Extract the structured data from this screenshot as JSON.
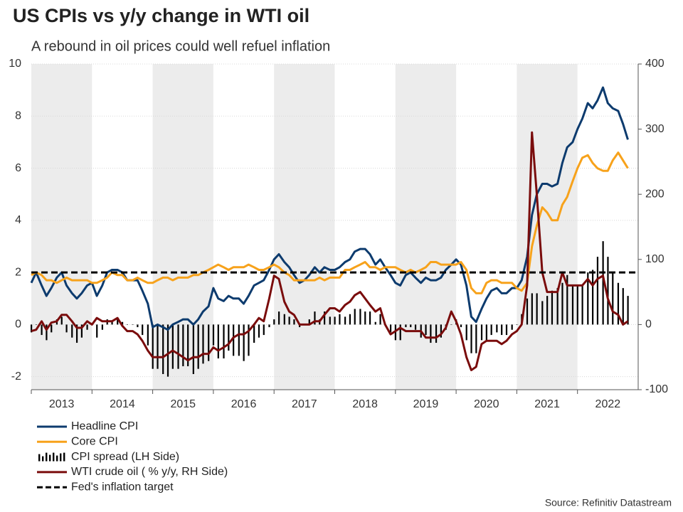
{
  "chart_data": {
    "type": "combo",
    "title": "US CPIs vs y/y change in WTI oil",
    "subtitle": "A rebound in oil prices could well refuel inflation",
    "source": "Source: Refinitiv Datastream",
    "xlim": [
      2013,
      2023
    ],
    "xticks": [
      {
        "value": 2013.5,
        "label": "2013"
      },
      {
        "value": 2014.5,
        "label": "2014"
      },
      {
        "value": 2015.5,
        "label": "2015"
      },
      {
        "value": 2016.5,
        "label": "2016"
      },
      {
        "value": 2017.5,
        "label": "2017"
      },
      {
        "value": 2018.5,
        "label": "2018"
      },
      {
        "value": 2019.5,
        "label": "2019"
      },
      {
        "value": 2020.5,
        "label": "2020"
      },
      {
        "value": 2021.5,
        "label": "2021"
      },
      {
        "value": 2022.5,
        "label": "2022"
      }
    ],
    "ylim": [
      -2.5,
      10
    ],
    "yticks": [
      -2,
      0,
      2,
      4,
      6,
      8,
      10
    ],
    "y2lim": [
      -100,
      400
    ],
    "y2ticks": [
      -100,
      0,
      100,
      200,
      300,
      400
    ],
    "x": [
      2013,
      2013.08,
      2013.17,
      2013.25,
      2013.33,
      2013.42,
      2013.5,
      2013.58,
      2013.67,
      2013.75,
      2013.83,
      2013.92,
      2014,
      2014.08,
      2014.17,
      2014.25,
      2014.33,
      2014.42,
      2014.5,
      2014.58,
      2014.67,
      2014.75,
      2014.83,
      2014.92,
      2015,
      2015.08,
      2015.17,
      2015.25,
      2015.33,
      2015.42,
      2015.5,
      2015.58,
      2015.67,
      2015.75,
      2015.83,
      2015.92,
      2016,
      2016.08,
      2016.17,
      2016.25,
      2016.33,
      2016.42,
      2016.5,
      2016.58,
      2016.67,
      2016.75,
      2016.83,
      2016.92,
      2017,
      2017.08,
      2017.17,
      2017.25,
      2017.33,
      2017.42,
      2017.5,
      2017.58,
      2017.67,
      2017.75,
      2017.83,
      2017.92,
      2018,
      2018.08,
      2018.17,
      2018.25,
      2018.33,
      2018.42,
      2018.5,
      2018.58,
      2018.67,
      2018.75,
      2018.83,
      2018.92,
      2019,
      2019.08,
      2019.17,
      2019.25,
      2019.33,
      2019.42,
      2019.5,
      2019.58,
      2019.67,
      2019.75,
      2019.83,
      2019.92,
      2020,
      2020.08,
      2020.17,
      2020.25,
      2020.33,
      2020.42,
      2020.5,
      2020.58,
      2020.67,
      2020.75,
      2020.83,
      2020.92,
      2021,
      2021.08,
      2021.17,
      2021.25,
      2021.33,
      2021.42,
      2021.5,
      2021.58,
      2021.67,
      2021.75,
      2021.83,
      2021.92,
      2022,
      2022.08,
      2022.17,
      2022.25,
      2022.33,
      2022.42,
      2022.5,
      2022.58,
      2022.67,
      2022.75,
      2022.83
    ],
    "series": [
      {
        "name": "Headline CPI",
        "kind": "line",
        "color": "#0d3b6e",
        "values": [
          1.6,
          2.0,
          1.5,
          1.1,
          1.4,
          1.8,
          2.0,
          1.5,
          1.2,
          1.0,
          1.2,
          1.5,
          1.6,
          1.1,
          1.5,
          2.0,
          2.1,
          2.1,
          2.0,
          1.7,
          1.7,
          1.7,
          1.3,
          0.8,
          -0.1,
          0.0,
          -0.1,
          -0.2,
          0.0,
          0.1,
          0.2,
          0.2,
          0.0,
          0.2,
          0.5,
          0.7,
          1.4,
          1.0,
          0.9,
          1.1,
          1.0,
          1.0,
          0.8,
          1.1,
          1.5,
          1.6,
          1.7,
          2.1,
          2.5,
          2.7,
          2.4,
          2.2,
          1.9,
          1.6,
          1.7,
          1.9,
          2.2,
          2.0,
          2.2,
          2.1,
          2.1,
          2.2,
          2.4,
          2.5,
          2.8,
          2.9,
          2.9,
          2.7,
          2.3,
          2.5,
          2.2,
          1.9,
          1.6,
          1.5,
          1.9,
          2.0,
          1.8,
          1.6,
          1.8,
          1.7,
          1.7,
          1.8,
          2.1,
          2.3,
          2.5,
          2.3,
          1.5,
          0.3,
          0.1,
          0.6,
          1.0,
          1.3,
          1.4,
          1.2,
          1.2,
          1.4,
          1.4,
          1.7,
          2.6,
          4.2,
          5.0,
          5.4,
          5.4,
          5.3,
          5.4,
          6.2,
          6.8,
          7.0,
          7.5,
          7.9,
          8.5,
          8.3,
          8.6,
          9.1,
          8.5,
          8.3,
          8.2,
          7.7,
          7.1
        ]
      },
      {
        "name": "Core CPI",
        "kind": "line",
        "color": "#f7a21b",
        "values": [
          1.9,
          2.0,
          1.9,
          1.7,
          1.7,
          1.6,
          1.7,
          1.8,
          1.7,
          1.7,
          1.7,
          1.7,
          1.6,
          1.6,
          1.7,
          1.8,
          2.0,
          1.9,
          1.9,
          1.7,
          1.7,
          1.8,
          1.7,
          1.6,
          1.6,
          1.7,
          1.8,
          1.8,
          1.7,
          1.8,
          1.8,
          1.8,
          1.9,
          1.9,
          2.0,
          2.1,
          2.2,
          2.3,
          2.2,
          2.1,
          2.2,
          2.2,
          2.2,
          2.3,
          2.2,
          2.1,
          2.1,
          2.2,
          2.3,
          2.2,
          2.0,
          1.9,
          1.7,
          1.7,
          1.7,
          1.7,
          1.7,
          1.8,
          1.7,
          1.8,
          1.8,
          1.8,
          2.1,
          2.1,
          2.2,
          2.3,
          2.4,
          2.2,
          2.2,
          2.1,
          2.2,
          2.2,
          2.2,
          2.1,
          2.0,
          2.1,
          2.0,
          2.1,
          2.2,
          2.4,
          2.4,
          2.3,
          2.3,
          2.3,
          2.3,
          2.4,
          2.1,
          1.4,
          1.2,
          1.2,
          1.6,
          1.7,
          1.7,
          1.6,
          1.6,
          1.6,
          1.4,
          1.3,
          1.6,
          3.0,
          3.8,
          4.5,
          4.3,
          4.0,
          4.0,
          4.6,
          4.9,
          5.5,
          6.0,
          6.4,
          6.5,
          6.2,
          6.0,
          5.9,
          5.9,
          6.3,
          6.6,
          6.3,
          6.0
        ]
      },
      {
        "name": "CPI spread (LH Side)",
        "kind": "bar",
        "color": "#000000",
        "values": [
          -0.3,
          0,
          -0.4,
          -0.6,
          -0.3,
          0.2,
          0.3,
          -0.3,
          -0.5,
          -0.7,
          -0.5,
          -0.2,
          0,
          -0.5,
          -0.2,
          0.2,
          0.1,
          0.2,
          0.1,
          0,
          0,
          -0.1,
          -0.4,
          -0.8,
          -1.7,
          -1.7,
          -1.9,
          -2.0,
          -1.7,
          -1.7,
          -1.6,
          -1.6,
          -1.9,
          -1.7,
          -1.5,
          -1.4,
          -0.8,
          -1.3,
          -1.3,
          -1.0,
          -1.2,
          -1.2,
          -1.4,
          -1.2,
          -0.7,
          -0.5,
          -0.4,
          -0.1,
          0.2,
          0.5,
          0.4,
          0.3,
          0.2,
          -0.1,
          0,
          0.2,
          0.5,
          0.2,
          0.5,
          0.3,
          0.3,
          0.4,
          0.3,
          0.4,
          0.6,
          0.6,
          0.5,
          0.5,
          0.1,
          0.4,
          0,
          -0.3,
          -0.6,
          -0.6,
          -0.1,
          -0.1,
          -0.2,
          -0.5,
          -0.4,
          -0.7,
          -0.7,
          -0.5,
          -0.2,
          0,
          0.2,
          -0.1,
          -0.6,
          -1.1,
          -1.1,
          -0.6,
          -0.6,
          -0.4,
          -0.3,
          -0.4,
          -0.4,
          -0.2,
          0,
          0.4,
          1.0,
          1.2,
          1.2,
          0.9,
          1.1,
          1.3,
          1.4,
          1.6,
          1.9,
          1.5,
          1.5,
          1.5,
          2.0,
          2.1,
          2.6,
          3.2,
          2.6,
          2.0,
          1.6,
          1.4,
          1.1
        ]
      },
      {
        "name": "WTI crude oil ( % y/y, RH Side)",
        "kind": "line",
        "axis": "y2",
        "color": "#7a0c0c",
        "values": [
          -10,
          -8,
          5,
          -8,
          3,
          5,
          15,
          15,
          5,
          -5,
          -5,
          5,
          0,
          10,
          5,
          5,
          5,
          10,
          -2,
          -10,
          -10,
          -15,
          -25,
          -40,
          -50,
          -50,
          -50,
          -45,
          -40,
          -45,
          -50,
          -55,
          -50,
          -50,
          -45,
          -45,
          -35,
          -40,
          -35,
          -30,
          -20,
          -15,
          -15,
          -10,
          0,
          10,
          5,
          40,
          75,
          70,
          35,
          20,
          15,
          0,
          0,
          0,
          5,
          5,
          15,
          25,
          25,
          20,
          30,
          35,
          45,
          50,
          40,
          30,
          20,
          25,
          0,
          -15,
          -10,
          -5,
          -10,
          -10,
          -10,
          -10,
          -20,
          -20,
          -20,
          -15,
          -5,
          20,
          5,
          -15,
          -50,
          -70,
          -65,
          -30,
          -25,
          -25,
          -25,
          -30,
          -25,
          -15,
          -10,
          0,
          60,
          295,
          200,
          80,
          50,
          50,
          50,
          80,
          60,
          60,
          60,
          60,
          70,
          60,
          70,
          75,
          40,
          20,
          15,
          0,
          5
        ]
      },
      {
        "name": "Fed's inflation target",
        "kind": "hline",
        "color": "#000000",
        "value": 2
      }
    ]
  }
}
